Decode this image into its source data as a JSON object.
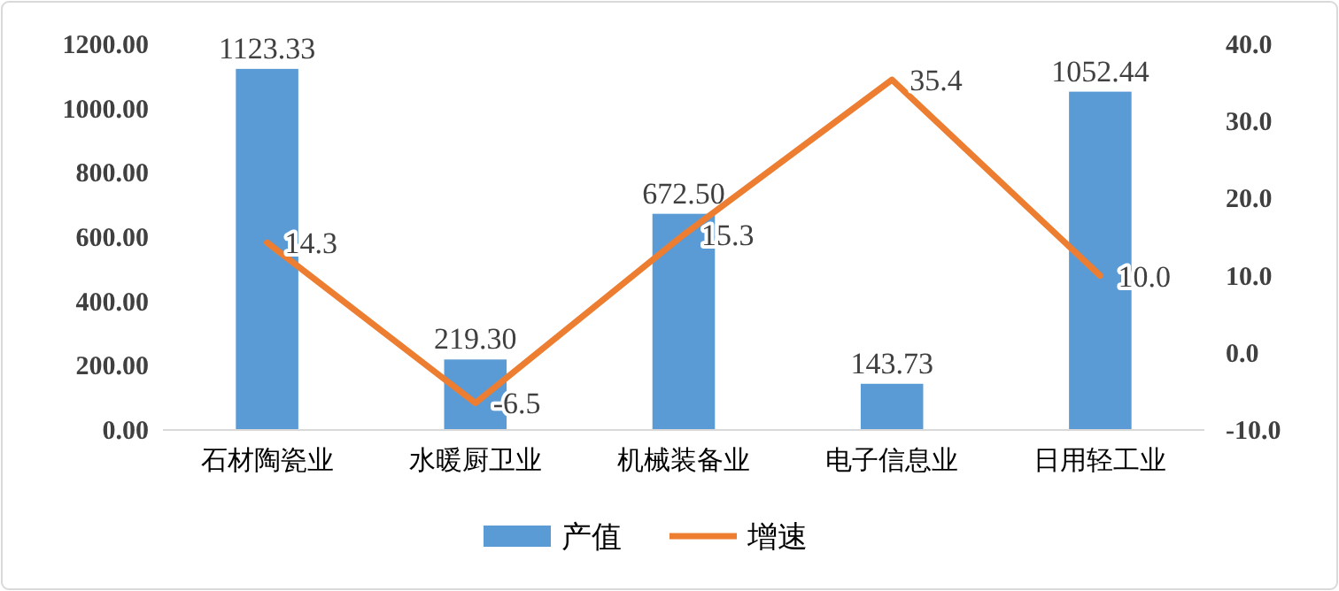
{
  "chart_data": {
    "type": "bar",
    "categories": [
      "石材陶瓷业",
      "水暖厨卫业",
      "机械装备业",
      "电子信息业",
      "日用轻工业"
    ],
    "series": [
      {
        "name": "产值",
        "color": "#5b9bd5",
        "values": [
          1123.33,
          219.3,
          672.5,
          143.73,
          1052.44
        ],
        "value_labels": [
          "1123.33",
          "219.30",
          "672.50",
          "143.73",
          "1052.44"
        ]
      },
      {
        "name": "增速",
        "type": "line",
        "axis": "y2",
        "color": "#ed7d31",
        "marker": "none",
        "values": [
          14.3,
          -6.5,
          15.3,
          35.4,
          10.0
        ],
        "value_labels": [
          "14.3",
          "-6.5",
          "15.3",
          "35.4",
          "10.0"
        ]
      }
    ],
    "ylim": [
      0,
      1200
    ],
    "yticks": [
      {
        "value": 0,
        "label": "0.00"
      },
      {
        "value": 200,
        "label": "200.00"
      },
      {
        "value": 400,
        "label": "400.00"
      },
      {
        "value": 600,
        "label": "600.00"
      },
      {
        "value": 800,
        "label": "800.00"
      },
      {
        "value": 1000,
        "label": "1000.00"
      },
      {
        "value": 1200,
        "label": "1200.00"
      }
    ],
    "y2lim": [
      -10,
      40
    ],
    "y2ticks": [
      {
        "value": -10,
        "label": "-10.0"
      },
      {
        "value": 0,
        "label": "0.0"
      },
      {
        "value": 10,
        "label": "10.0"
      },
      {
        "value": 20,
        "label": "20.0"
      },
      {
        "value": 30,
        "label": "30.0"
      },
      {
        "value": 40,
        "label": "40.0"
      }
    ],
    "grid": false,
    "legend": "bottom"
  }
}
